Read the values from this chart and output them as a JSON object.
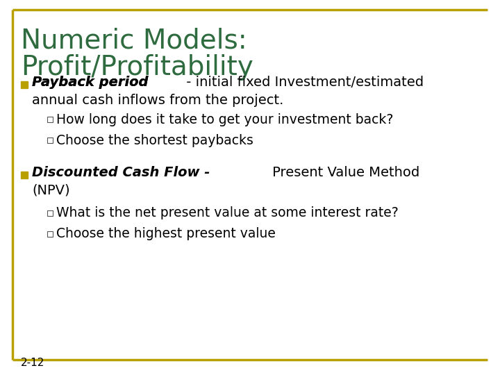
{
  "title_line1": "Numeric Models:",
  "title_line2": "Profit/Profitability",
  "title_color": "#2E6B3E",
  "background_color": "#FFFFFF",
  "border_color": "#B8A000",
  "slide_number": "2-12",
  "bullet_color": "#B8A000",
  "text_color": "#000000",
  "title_fontsize": 28,
  "bullet_fontsize": 14,
  "sub_bullet_fontsize": 13.5,
  "slide_num_fontsize": 11
}
